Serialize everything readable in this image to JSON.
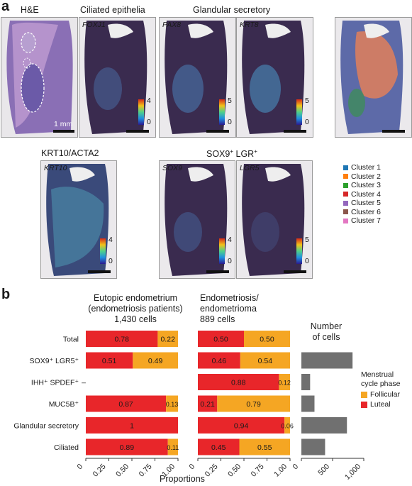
{
  "panel_a": {
    "letter": "a",
    "titles": {
      "he": "H&E",
      "ciliated": "Ciliated epithelia",
      "glandular": "Glandular secretory",
      "krt10": "KRT10/ACTA2",
      "sox9_prefix": "SOX9",
      "sox9_sup": "+",
      "sox9_mid": " LGR",
      "sox9_sup2": "+"
    },
    "genes": {
      "foxj1": "FOXJ1",
      "pax8": "PAX8",
      "krt8": "KRT8",
      "krt10": "KRT10",
      "sox9": "SOX9",
      "lgr5": "LGR5"
    },
    "scale_label": "1 mm",
    "colorbars": [
      {
        "max": "4",
        "min": "0"
      },
      {
        "max": "5",
        "min": "0"
      },
      {
        "max": "5",
        "min": "0"
      },
      {
        "max": "4",
        "min": "0"
      },
      {
        "max": "4",
        "min": "0"
      },
      {
        "max": "5",
        "min": "0"
      }
    ],
    "cluster_legend": [
      {
        "label": "Cluster 1",
        "color": "#1f77b4"
      },
      {
        "label": "Cluster 2",
        "color": "#ff7f0e"
      },
      {
        "label": "Cluster 3",
        "color": "#2ca02c"
      },
      {
        "label": "Cluster 4",
        "color": "#d62728"
      },
      {
        "label": "Cluster 5",
        "color": "#9467bd"
      },
      {
        "label": "Cluster 6",
        "color": "#8c564b"
      },
      {
        "label": "Cluster 7",
        "color": "#e377c2"
      }
    ]
  },
  "panel_b": {
    "letter": "b",
    "col1_title": [
      "Eutopic endometrium",
      "(endometriosis patients)",
      "1,430 cells"
    ],
    "col2_title": [
      "Endometriosis/",
      "endometrioma",
      "889 cells"
    ],
    "col3_title": [
      "Number",
      "of cells"
    ],
    "row_labels": [
      "Total",
      "SOX9⁺ LGR5⁺",
      "IHH⁺ SPDEF⁺",
      "MUC5B⁺",
      "Glandular secretory",
      "Ciliated"
    ],
    "x_axis_label": "Proportions",
    "legend_title": [
      "Menstrual",
      "cycle phase"
    ],
    "legend": [
      {
        "label": "Follicular",
        "color": "#f5a623"
      },
      {
        "label": "Luteal",
        "color": "#e8262a"
      }
    ]
  },
  "chart_data": [
    {
      "type": "bar",
      "orientation": "horizontal",
      "stacked": true,
      "title": "Eutopic endometrium (endometriosis patients) 1,430 cells",
      "categories": [
        "Total",
        "SOX9⁺ LGR5⁺",
        "IHH⁺ SPDEF⁺",
        "MUC5B⁺",
        "Glandular secretory",
        "Ciliated"
      ],
      "series": [
        {
          "name": "Luteal",
          "color": "#e8262a",
          "values": [
            0.78,
            0.51,
            null,
            0.87,
            1,
            0.89
          ],
          "labels": [
            "0.78",
            "0.51",
            "",
            "0.87",
            "1",
            "0.89"
          ]
        },
        {
          "name": "Follicular",
          "color": "#f5a623",
          "values": [
            0.22,
            0.49,
            null,
            0.13,
            0,
            0.11
          ],
          "labels": [
            "0.22",
            "0.49",
            "",
            "0.13",
            "",
            "0.11"
          ]
        }
      ],
      "missing_marker": "–",
      "xlim": [
        0,
        1
      ],
      "xticks": [
        "0",
        "0.25",
        "0.50",
        "0.75",
        "1.00"
      ]
    },
    {
      "type": "bar",
      "orientation": "horizontal",
      "stacked": true,
      "title": "Endometriosis/ endometrioma 889 cells",
      "categories": [
        "Total",
        "SOX9⁺ LGR5⁺",
        "IHH⁺ SPDEF⁺",
        "MUC5B⁺",
        "Glandular secretory",
        "Ciliated"
      ],
      "series": [
        {
          "name": "Luteal",
          "color": "#e8262a",
          "values": [
            0.5,
            0.46,
            0.88,
            0.21,
            0.94,
            0.45
          ],
          "labels": [
            "0.50",
            "0.46",
            "0.88",
            "0.21",
            "0.94",
            "0.45"
          ]
        },
        {
          "name": "Follicular",
          "color": "#f5a623",
          "values": [
            0.5,
            0.54,
            0.12,
            0.79,
            0.06,
            0.55
          ],
          "labels": [
            "0.50",
            "0.54",
            "0.12",
            "0.79",
            "0.06",
            "0.55"
          ]
        }
      ],
      "xlim": [
        0,
        1
      ],
      "xticks": [
        "0",
        "0.25",
        "0.50",
        "0.75",
        "1.00"
      ]
    },
    {
      "type": "bar",
      "orientation": "horizontal",
      "title": "Number of cells",
      "categories": [
        "Total",
        "SOX9⁺ LGR5⁺",
        "IHH⁺ SPDEF⁺",
        "MUC5B⁺",
        "Glandular secretory",
        "Ciliated"
      ],
      "values": [
        null,
        820,
        140,
        210,
        730,
        380
      ],
      "color": "#707070",
      "xlim": [
        0,
        1000
      ],
      "xticks": [
        "0",
        "500",
        "1,000"
      ]
    }
  ]
}
